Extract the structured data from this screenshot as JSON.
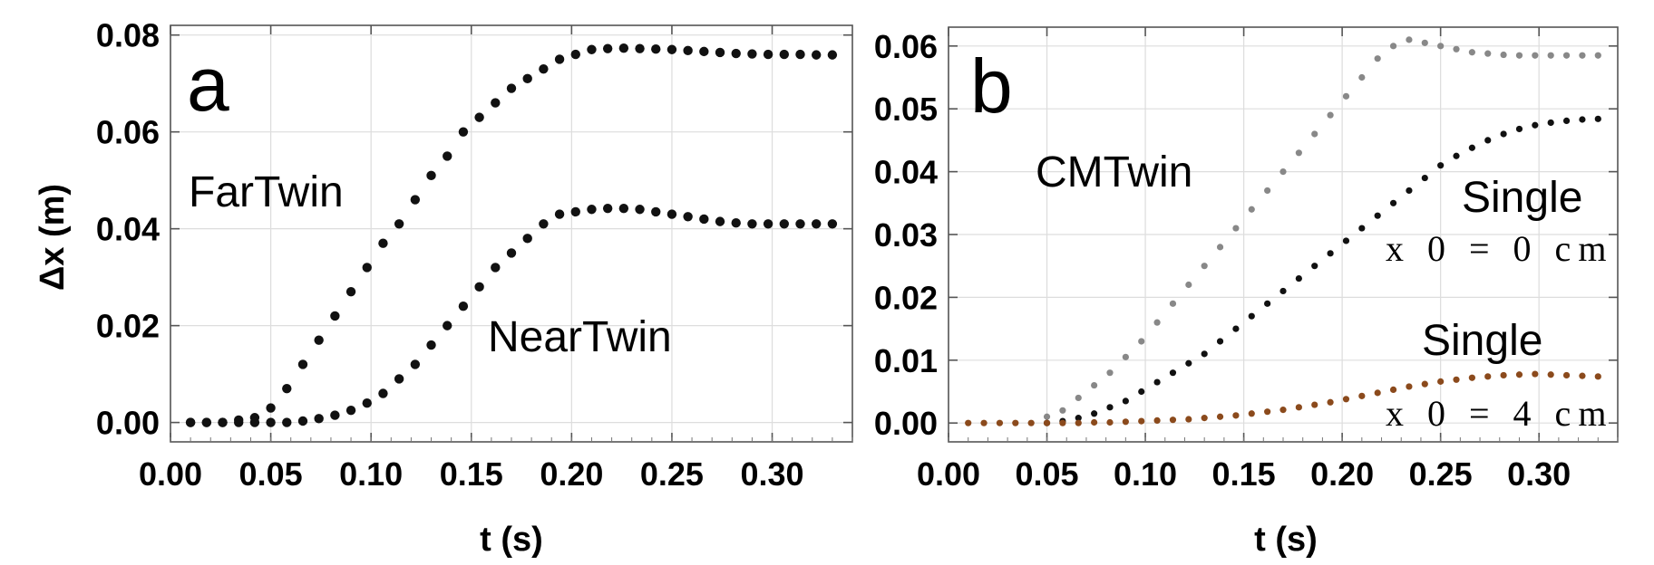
{
  "chart_data": [
    {
      "panel": "a",
      "type": "scatter",
      "xlabel": "t (s)",
      "ylabel": "Δx (m)",
      "xlim": [
        0.0,
        0.34
      ],
      "ylim": [
        -0.004,
        0.082
      ],
      "xticks": [
        "0.00",
        "0.05",
        "0.10",
        "0.15",
        "0.20",
        "0.25",
        "0.30"
      ],
      "xtick_values": [
        0.0,
        0.05,
        0.1,
        0.15,
        0.2,
        0.25,
        0.3
      ],
      "yticks": [
        "0.00",
        "0.02",
        "0.04",
        "0.06",
        "0.08"
      ],
      "ytick_values": [
        0.0,
        0.02,
        0.04,
        0.06,
        0.08
      ],
      "grid": true,
      "annotations": [
        "a",
        "FarTwin",
        "NearTwin"
      ],
      "series": [
        {
          "name": "FarTwin",
          "color": "#111111",
          "x": [
            0.01,
            0.018,
            0.026,
            0.034,
            0.042,
            0.05,
            0.058,
            0.066,
            0.074,
            0.082,
            0.09,
            0.098,
            0.106,
            0.114,
            0.122,
            0.13,
            0.138,
            0.146,
            0.154,
            0.162,
            0.17,
            0.178,
            0.186,
            0.194,
            0.202,
            0.21,
            0.218,
            0.226,
            0.234,
            0.242,
            0.25,
            0.258,
            0.266,
            0.274,
            0.282,
            0.29,
            0.298,
            0.306,
            0.314,
            0.322,
            0.33
          ],
          "y": [
            0.0,
            0.0,
            0.0,
            0.0005,
            0.001,
            0.003,
            0.007,
            0.012,
            0.017,
            0.022,
            0.027,
            0.032,
            0.037,
            0.041,
            0.046,
            0.051,
            0.055,
            0.06,
            0.063,
            0.066,
            0.069,
            0.071,
            0.073,
            0.075,
            0.076,
            0.077,
            0.0772,
            0.0773,
            0.0772,
            0.0771,
            0.077,
            0.0768,
            0.0766,
            0.0764,
            0.0762,
            0.0761,
            0.076,
            0.076,
            0.076,
            0.0759,
            0.0759
          ]
        },
        {
          "name": "NearTwin",
          "color": "#111111",
          "x": [
            0.01,
            0.018,
            0.026,
            0.034,
            0.042,
            0.05,
            0.058,
            0.066,
            0.074,
            0.082,
            0.09,
            0.098,
            0.106,
            0.114,
            0.122,
            0.13,
            0.138,
            0.146,
            0.154,
            0.162,
            0.17,
            0.178,
            0.186,
            0.194,
            0.202,
            0.21,
            0.218,
            0.226,
            0.234,
            0.242,
            0.25,
            0.258,
            0.266,
            0.274,
            0.282,
            0.29,
            0.298,
            0.306,
            0.314,
            0.322,
            0.33
          ],
          "y": [
            0.0,
            0.0,
            0.0,
            0.0,
            0.0,
            0.0,
            0.0,
            0.0003,
            0.0008,
            0.0015,
            0.0025,
            0.004,
            0.006,
            0.009,
            0.012,
            0.016,
            0.02,
            0.024,
            0.028,
            0.032,
            0.035,
            0.038,
            0.041,
            0.043,
            0.0435,
            0.044,
            0.0442,
            0.0442,
            0.044,
            0.0435,
            0.043,
            0.0425,
            0.042,
            0.0415,
            0.0412,
            0.041,
            0.041,
            0.041,
            0.041,
            0.041,
            0.041
          ]
        }
      ]
    },
    {
      "panel": "b",
      "type": "scatter",
      "xlabel": "t (s)",
      "ylabel": "",
      "xlim": [
        0.0,
        0.34
      ],
      "ylim": [
        -0.003,
        0.063
      ],
      "xticks": [
        "0.00",
        "0.05",
        "0.10",
        "0.15",
        "0.20",
        "0.25",
        "0.30"
      ],
      "xtick_values": [
        0.0,
        0.05,
        0.1,
        0.15,
        0.2,
        0.25,
        0.3
      ],
      "yticks": [
        "0.00",
        "0.01",
        "0.02",
        "0.03",
        "0.04",
        "0.05",
        "0.06"
      ],
      "ytick_values": [
        0.0,
        0.01,
        0.02,
        0.03,
        0.04,
        0.05,
        0.06
      ],
      "grid": true,
      "annotations": [
        "b",
        "CMTwin",
        "Single",
        "x 0 = 0 cm",
        "Single",
        "x 0 = 4 cm"
      ],
      "series": [
        {
          "name": "CMTwin",
          "color": "#888888",
          "x": [
            0.05,
            0.058,
            0.066,
            0.074,
            0.082,
            0.09,
            0.098,
            0.106,
            0.114,
            0.122,
            0.13,
            0.138,
            0.146,
            0.154,
            0.162,
            0.17,
            0.178,
            0.186,
            0.194,
            0.202,
            0.21,
            0.218,
            0.226,
            0.234,
            0.242,
            0.25,
            0.258,
            0.266,
            0.274,
            0.282,
            0.29,
            0.298,
            0.306,
            0.314,
            0.322,
            0.33
          ],
          "y": [
            0.001,
            0.002,
            0.004,
            0.006,
            0.008,
            0.0105,
            0.013,
            0.016,
            0.019,
            0.022,
            0.025,
            0.028,
            0.031,
            0.034,
            0.037,
            0.04,
            0.043,
            0.046,
            0.049,
            0.052,
            0.055,
            0.058,
            0.06,
            0.061,
            0.0605,
            0.06,
            0.0595,
            0.059,
            0.0588,
            0.0586,
            0.0585,
            0.0585,
            0.0585,
            0.0585,
            0.0585,
            0.0585
          ]
        },
        {
          "name": "Single x0 = 0 cm",
          "color": "#111111",
          "x": [
            0.05,
            0.058,
            0.066,
            0.074,
            0.082,
            0.09,
            0.098,
            0.106,
            0.114,
            0.122,
            0.13,
            0.138,
            0.146,
            0.154,
            0.162,
            0.17,
            0.178,
            0.186,
            0.194,
            0.202,
            0.21,
            0.218,
            0.226,
            0.234,
            0.242,
            0.25,
            0.258,
            0.266,
            0.274,
            0.282,
            0.29,
            0.298,
            0.306,
            0.314,
            0.322,
            0.33
          ],
          "y": [
            0.0,
            0.0003,
            0.0008,
            0.0015,
            0.0025,
            0.0035,
            0.005,
            0.0065,
            0.008,
            0.0095,
            0.011,
            0.013,
            0.015,
            0.017,
            0.019,
            0.021,
            0.023,
            0.025,
            0.027,
            0.029,
            0.031,
            0.033,
            0.035,
            0.037,
            0.039,
            0.041,
            0.0425,
            0.0438,
            0.045,
            0.046,
            0.0468,
            0.0474,
            0.0478,
            0.0481,
            0.0483,
            0.0484
          ]
        },
        {
          "name": "Single x0 = 4 cm",
          "color": "#8B4A1C",
          "x": [
            0.01,
            0.018,
            0.026,
            0.034,
            0.042,
            0.05,
            0.058,
            0.066,
            0.074,
            0.082,
            0.09,
            0.098,
            0.106,
            0.114,
            0.122,
            0.13,
            0.138,
            0.146,
            0.154,
            0.162,
            0.17,
            0.178,
            0.186,
            0.194,
            0.202,
            0.21,
            0.218,
            0.226,
            0.234,
            0.242,
            0.25,
            0.258,
            0.266,
            0.274,
            0.282,
            0.29,
            0.298,
            0.306,
            0.314,
            0.322,
            0.33
          ],
          "y": [
            0.0,
            0.0,
            0.0,
            0.0,
            0.0,
            0.0,
            0.0,
            0.0,
            0.0001,
            0.0001,
            0.0002,
            0.0003,
            0.0004,
            0.0005,
            0.0006,
            0.0008,
            0.001,
            0.0012,
            0.0015,
            0.0018,
            0.0021,
            0.0025,
            0.0029,
            0.0033,
            0.0038,
            0.0043,
            0.0048,
            0.0053,
            0.0058,
            0.0062,
            0.0066,
            0.0069,
            0.0072,
            0.0074,
            0.0076,
            0.0077,
            0.0078,
            0.0077,
            0.0076,
            0.0075,
            0.0074
          ]
        }
      ]
    }
  ]
}
